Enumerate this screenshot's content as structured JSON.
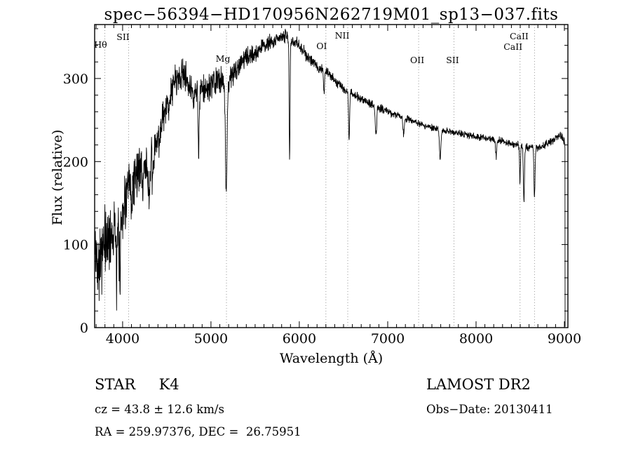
{
  "title": "spec−56394−HD170956N262719M01_sp13−037.fits",
  "footer": {
    "class_label": "STAR     K4",
    "survey": "LAMOST DR2",
    "cz": "cz = 43.8 ± 12.6 km/s",
    "obs_date": "Obs−Date: 20130411",
    "radec": "RA = 259.97376, DEC =  26.75951"
  },
  "chart_data": {
    "type": "line",
    "title": "spec−56394−HD170956N262719M01_sp13−037.fits",
    "xlabel": "Wavelength (Å)",
    "ylabel": "Flux (relative)",
    "xlim": [
      3683,
      9040
    ],
    "ylim": [
      0,
      365
    ],
    "x_ticks": [
      4000,
      5000,
      6000,
      7000,
      8000,
      9000
    ],
    "y_ticks": [
      0,
      100,
      200,
      300
    ],
    "grid": false,
    "line_color": "#000000",
    "marker_line_color": "#999999",
    "seed": 42,
    "cutoff": 9008,
    "line_markers": [
      {
        "label": "Hθ",
        "wl": 3798,
        "label_y": 68,
        "dx": -6
      },
      {
        "label": "SII",
        "wl": 4068,
        "label_y": 57,
        "dx": -8
      },
      {
        "label": "Mg",
        "wl": 5175,
        "label_y": 88,
        "dx": -5
      },
      {
        "label": "OI",
        "wl": 6300,
        "label_y": 70,
        "dx": -6
      },
      {
        "label": "NII",
        "wl": 6548,
        "label_y": 55,
        "dx": -8
      },
      {
        "label": "OII",
        "wl": 7350,
        "label_y": 90,
        "dx": -2
      },
      {
        "label": "SII",
        "wl": 7750,
        "label_y": 90,
        "dx": -2
      },
      {
        "label": "CaII",
        "wl": 8498,
        "label_y": 71,
        "dx": -10
      },
      {
        "label": "CaII",
        "wl": 8662,
        "label_y": 56,
        "dx": -22
      }
    ],
    "continuum": [
      [
        3690,
        85
      ],
      [
        3750,
        85
      ],
      [
        3800,
        100
      ],
      [
        3900,
        120
      ],
      [
        3950,
        130
      ],
      [
        4000,
        145
      ],
      [
        4100,
        175
      ],
      [
        4200,
        195
      ],
      [
        4300,
        195
      ],
      [
        4400,
        225
      ],
      [
        4500,
        265
      ],
      [
        4600,
        300
      ],
      [
        4700,
        305
      ],
      [
        4750,
        290
      ],
      [
        4800,
        280
      ],
      [
        4900,
        285
      ],
      [
        5000,
        290
      ],
      [
        5100,
        300
      ],
      [
        5200,
        295
      ],
      [
        5300,
        315
      ],
      [
        5400,
        325
      ],
      [
        5500,
        330
      ],
      [
        5600,
        340
      ],
      [
        5700,
        345
      ],
      [
        5800,
        350
      ],
      [
        5850,
        352
      ],
      [
        5900,
        348
      ],
      [
        6000,
        340
      ],
      [
        6100,
        325
      ],
      [
        6200,
        315
      ],
      [
        6300,
        308
      ],
      [
        6400,
        298
      ],
      [
        6500,
        288
      ],
      [
        6600,
        282
      ],
      [
        6700,
        275
      ],
      [
        6800,
        270
      ],
      [
        6900,
        265
      ],
      [
        7000,
        260
      ],
      [
        7100,
        256
      ],
      [
        7200,
        252
      ],
      [
        7300,
        248
      ],
      [
        7400,
        244
      ],
      [
        7500,
        241
      ],
      [
        7600,
        238
      ],
      [
        7700,
        236
      ],
      [
        7800,
        234
      ],
      [
        7900,
        232
      ],
      [
        8000,
        230
      ],
      [
        8100,
        228
      ],
      [
        8200,
        226
      ],
      [
        8300,
        224
      ],
      [
        8400,
        222
      ],
      [
        8500,
        220
      ],
      [
        8600,
        217
      ],
      [
        8700,
        216
      ],
      [
        8800,
        221
      ],
      [
        8900,
        228
      ],
      [
        8950,
        232
      ],
      [
        9000,
        224
      ],
      [
        9008,
        212
      ]
    ],
    "noise_amp": [
      [
        3690,
        60
      ],
      [
        3800,
        55
      ],
      [
        4000,
        45
      ],
      [
        4200,
        35
      ],
      [
        4400,
        30
      ],
      [
        4600,
        25
      ],
      [
        4800,
        22
      ],
      [
        5000,
        20
      ],
      [
        5200,
        18
      ],
      [
        5400,
        14
      ],
      [
        5600,
        12
      ],
      [
        5800,
        10
      ],
      [
        6000,
        9
      ],
      [
        6200,
        8
      ],
      [
        6500,
        7
      ],
      [
        7000,
        6
      ],
      [
        7500,
        5
      ],
      [
        8000,
        5
      ],
      [
        8500,
        6
      ],
      [
        9008,
        6
      ]
    ],
    "absorption": [
      [
        3933,
        70,
        8
      ],
      [
        3968,
        65,
        8
      ],
      [
        4101,
        45,
        6
      ],
      [
        4227,
        35,
        5
      ],
      [
        4300,
        40,
        10
      ],
      [
        4340,
        35,
        6
      ],
      [
        4861,
        70,
        6
      ],
      [
        5172,
        135,
        9
      ],
      [
        5890,
        150,
        5
      ],
      [
        6280,
        25,
        6
      ],
      [
        6563,
        60,
        6
      ],
      [
        6867,
        35,
        8
      ],
      [
        7180,
        20,
        8
      ],
      [
        7594,
        35,
        8
      ],
      [
        8227,
        20,
        6
      ],
      [
        8498,
        45,
        5
      ],
      [
        8542,
        70,
        6
      ],
      [
        8662,
        60,
        6
      ]
    ]
  }
}
